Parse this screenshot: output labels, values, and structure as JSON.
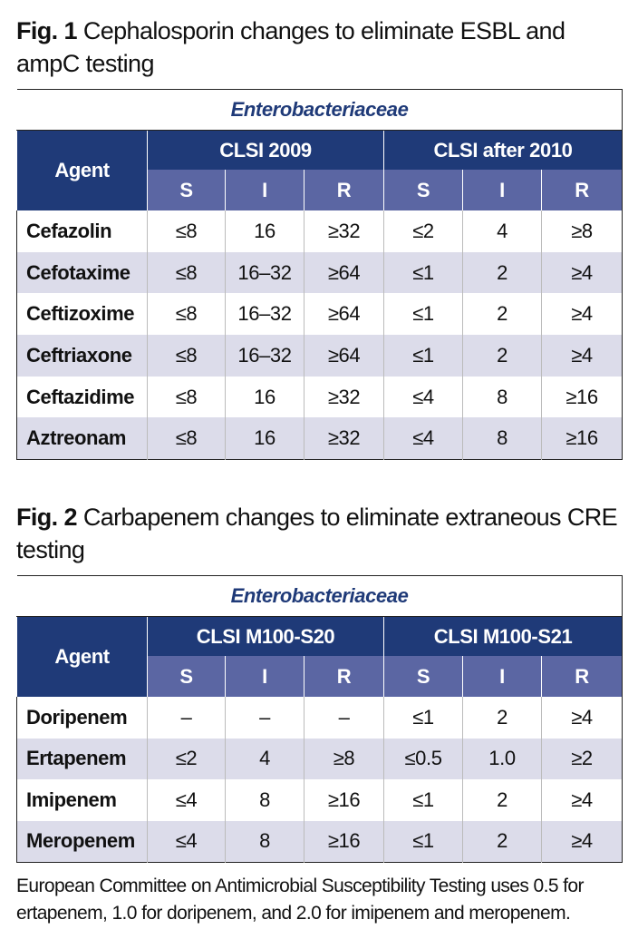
{
  "figures": [
    {
      "label": "Fig. 1",
      "caption": "Cephalosporin changes to eliminate ESBL and ampC testing",
      "table": {
        "organism": "Enterobacteriaceae",
        "agent_header": "Agent",
        "groups": [
          "CLSI 2009",
          "CLSI after 2010"
        ],
        "subheaders": [
          "S",
          "I",
          "R",
          "S",
          "I",
          "R"
        ],
        "rows": [
          [
            "Cefazolin",
            "≤8",
            "16",
            "≥32",
            "≤2",
            "4",
            "≥8"
          ],
          [
            "Cefotaxime",
            "≤8",
            "16–32",
            "≥64",
            "≤1",
            "2",
            "≥4"
          ],
          [
            "Ceftizoxime",
            "≤8",
            "16–32",
            "≥64",
            "≤1",
            "2",
            "≥4"
          ],
          [
            "Ceftriaxone",
            "≤8",
            "16–32",
            "≥64",
            "≤1",
            "2",
            "≥4"
          ],
          [
            "Ceftazidime",
            "≤8",
            "16",
            "≥32",
            "≤4",
            "8",
            "≥16"
          ],
          [
            "Aztreonam",
            "≤8",
            "16",
            "≥32",
            "≤4",
            "8",
            "≥16"
          ]
        ]
      }
    },
    {
      "label": "Fig. 2",
      "caption": "Carbapenem changes to eliminate extraneous CRE testing",
      "table": {
        "organism": "Enterobacteriaceae",
        "agent_header": "Agent",
        "groups": [
          "CLSI M100-S20",
          "CLSI M100-S21"
        ],
        "subheaders": [
          "S",
          "I",
          "R",
          "S",
          "I",
          "R"
        ],
        "rows": [
          [
            "Doripenem",
            "–",
            "–",
            "–",
            "≤1",
            "2",
            "≥4"
          ],
          [
            "Ertapenem",
            "≤2",
            "4",
            "≥8",
            "≤0.5",
            "1.0",
            "≥2"
          ],
          [
            "Imipenem",
            "≤4",
            "8",
            "≥16",
            "≤1",
            "2",
            "≥4"
          ],
          [
            "Meropenem",
            "≤4",
            "8",
            "≥16",
            "≤1",
            "2",
            "≥4"
          ]
        ]
      }
    }
  ],
  "footnote": "European Committee on Antimicrobial Susceptibility Testing uses 0.5 for ertapenem, 1.0 for doripenem, and 2.0 for imipenem and meropenem."
}
